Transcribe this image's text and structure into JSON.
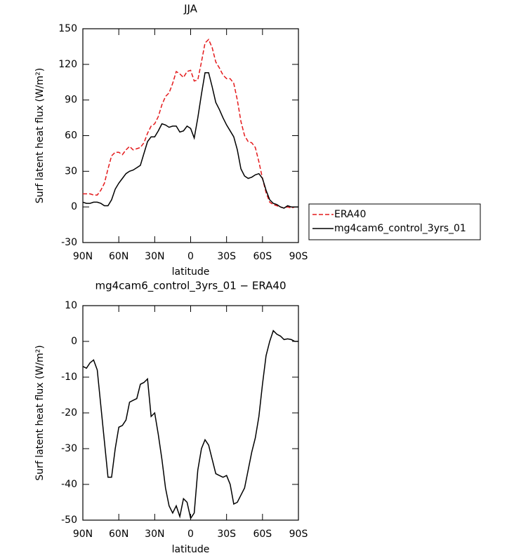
{
  "chart_data": [
    {
      "type": "line",
      "title": "JJA",
      "xlabel": "latitude",
      "ylabel": "Surf latent heat flux (W/m²)",
      "x": [
        90,
        87,
        84,
        81,
        78,
        75,
        72,
        69,
        66,
        63,
        60,
        57,
        54,
        51,
        48,
        45,
        42,
        39,
        36,
        33,
        30,
        27,
        24,
        21,
        18,
        15,
        12,
        9,
        6,
        3,
        0,
        -3,
        -6,
        -9,
        -12,
        -15,
        -18,
        -21,
        -24,
        -27,
        -30,
        -33,
        -36,
        -39,
        -42,
        -45,
        -48,
        -51,
        -54,
        -57,
        -60,
        -63,
        -66,
        -69,
        -72,
        -75,
        -78,
        -81,
        -84,
        -87,
        -90
      ],
      "series": [
        {
          "name": "ERA40",
          "color": "#e41a1c",
          "linestyle": "dashed",
          "values": [
            11,
            11,
            11,
            10,
            10,
            14,
            20,
            32,
            43,
            46,
            46,
            44,
            48,
            51,
            48,
            49,
            50,
            54,
            62,
            68,
            70,
            76,
            86,
            93,
            96,
            104,
            114,
            112,
            109,
            114,
            115,
            106,
            107,
            122,
            138,
            141,
            134,
            122,
            117,
            111,
            108,
            108,
            104,
            90,
            72,
            60,
            55,
            54,
            50,
            38,
            24,
            12,
            4,
            2,
            1,
            0,
            -1,
            0,
            -1,
            0,
            0
          ]
        },
        {
          "name": "mg4cam6_control_3yrs_01",
          "color": "#000000",
          "linestyle": "solid",
          "values": [
            4,
            3,
            3,
            4,
            4,
            3,
            1,
            1,
            6,
            15,
            20,
            24,
            28,
            30,
            31,
            33,
            35,
            45,
            55,
            59,
            59,
            64,
            70,
            69,
            67,
            68,
            68,
            63,
            64,
            68,
            66,
            58,
            75,
            95,
            113,
            113,
            101,
            88,
            82,
            75,
            69,
            64,
            59,
            48,
            32,
            26,
            24,
            25,
            27,
            28,
            24,
            14,
            6,
            3,
            2,
            0,
            -1,
            1,
            0,
            0,
            0
          ]
        }
      ],
      "xlim": [
        90,
        -90
      ],
      "xticks": [
        {
          "value": 90,
          "label": "90N"
        },
        {
          "value": 60,
          "label": "60N"
        },
        {
          "value": 30,
          "label": "30N"
        },
        0,
        {
          "value": -30,
          "label": "30S"
        },
        {
          "value": -60,
          "label": "60S"
        },
        {
          "value": -90,
          "label": "90S"
        }
      ],
      "ylim": [
        -30,
        150
      ],
      "yticks": [
        150,
        120,
        90,
        60,
        30,
        0,
        -30
      ],
      "legend": "right"
    },
    {
      "type": "line",
      "title": "mg4cam6_control_3yrs_01 − ERA40",
      "xlabel": "latitude",
      "ylabel": "Surf latent heat flux (W/m²)",
      "x": [
        90,
        87,
        84,
        81,
        78,
        75,
        72,
        69,
        66,
        63,
        60,
        57,
        54,
        51,
        48,
        45,
        42,
        39,
        36,
        33,
        30,
        27,
        24,
        21,
        18,
        15,
        12,
        9,
        6,
        3,
        0,
        -3,
        -6,
        -9,
        -12,
        -15,
        -18,
        -21,
        -24,
        -27,
        -30,
        -33,
        -36,
        -39,
        -42,
        -45,
        -48,
        -51,
        -54,
        -57,
        -60,
        -63,
        -66,
        -69,
        -72,
        -75,
        -78,
        -81,
        -84,
        -87,
        -90
      ],
      "series": [
        {
          "color": "#000000",
          "linestyle": "solid",
          "values": [
            -7,
            -7.5,
            -6,
            -5.2,
            -8,
            -18,
            -28,
            -38,
            -38,
            -30,
            -24,
            -23.5,
            -22,
            -17,
            -16.5,
            -16,
            -12,
            -11.5,
            -10.5,
            -21,
            -20,
            -26,
            -33,
            -41,
            -46,
            -48,
            -46,
            -49,
            -44,
            -45,
            -49.5,
            -48,
            -36,
            -30,
            -27.5,
            -29,
            -33,
            -37,
            -37.5,
            -38,
            -37.5,
            -40,
            -45.5,
            -45,
            -43,
            -41,
            -36,
            -31,
            -27,
            -21,
            -12,
            -4,
            0,
            3,
            2,
            1.5,
            0.5,
            0.7,
            0.5,
            0,
            0
          ]
        }
      ],
      "xlim": [
        90,
        -90
      ],
      "xticks": [
        {
          "value": 90,
          "label": "90N"
        },
        {
          "value": 60,
          "label": "60N"
        },
        {
          "value": 30,
          "label": "30N"
        },
        0,
        {
          "value": -30,
          "label": "30S"
        },
        {
          "value": -60,
          "label": "60S"
        },
        {
          "value": -90,
          "label": "90S"
        }
      ],
      "ylim": [
        -50,
        10
      ],
      "yticks": [
        10,
        0,
        -10,
        -20,
        -30,
        -40,
        -50
      ]
    }
  ]
}
